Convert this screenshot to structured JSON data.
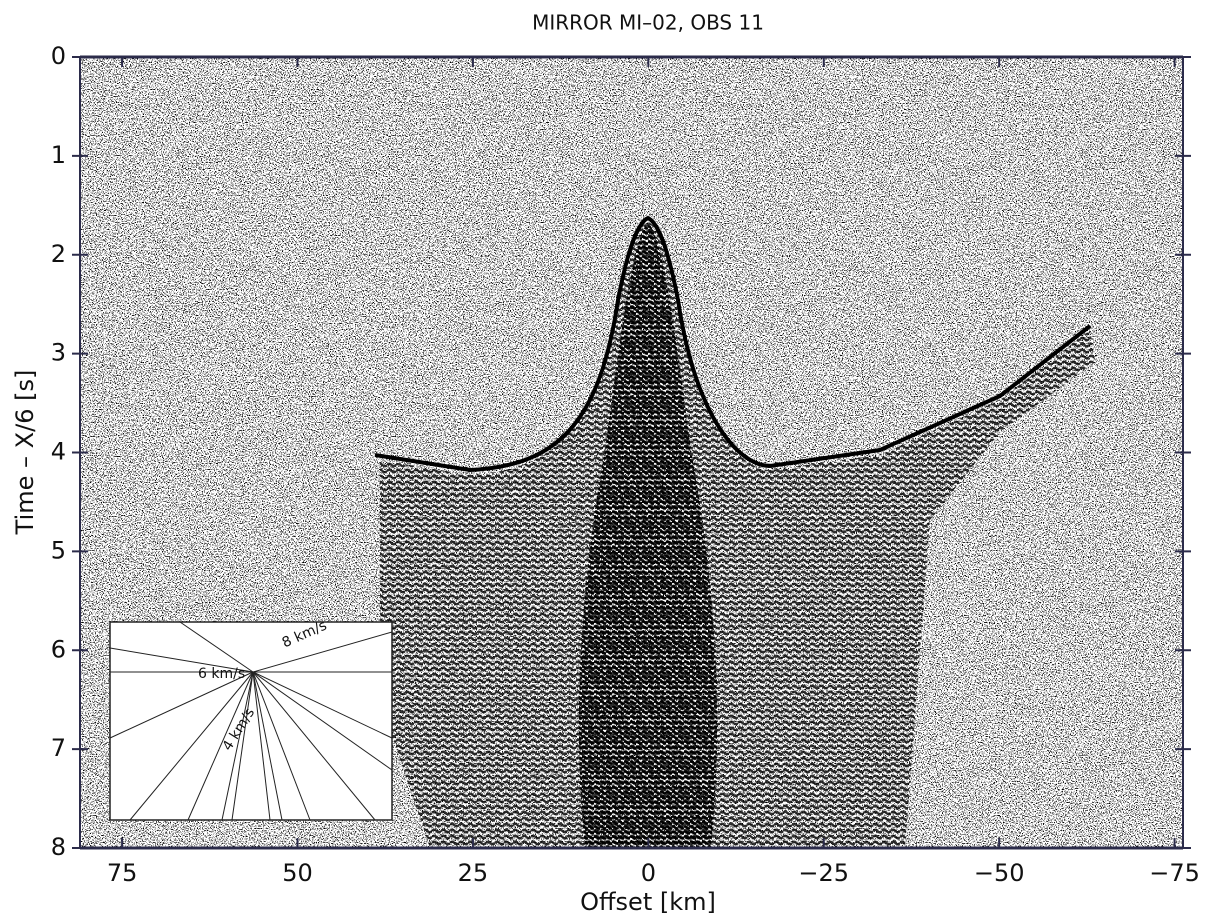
{
  "chart_data": {
    "type": "seismic-section",
    "title": "MIRROR MI–02, OBS 11",
    "x_label": "Offset [km]",
    "y_label": "Time – X/6 [s]",
    "xlim": [
      81,
      -76.2
    ],
    "ylim": [
      0,
      8
    ],
    "xticks": [
      75,
      50,
      25,
      0,
      {
        "value": -25,
        "label": "−25"
      },
      {
        "value": -50,
        "label": "−50"
      },
      {
        "value": -75,
        "label": "−75"
      }
    ],
    "yticks": [
      0,
      1,
      2,
      3,
      4,
      5,
      6,
      7,
      8
    ],
    "annotations": [
      "8 km/s",
      "6 km/s",
      "4 km/s"
    ]
  }
}
